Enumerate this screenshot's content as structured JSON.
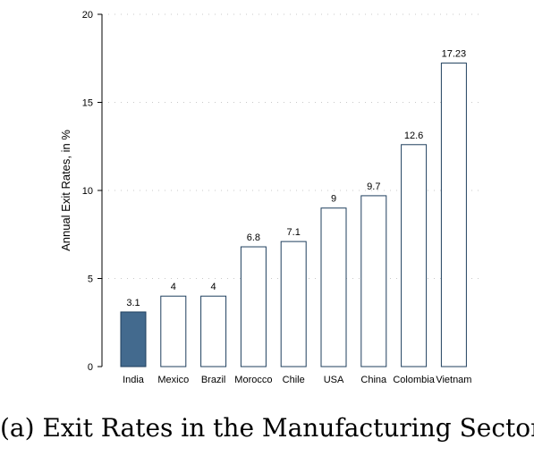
{
  "caption": "(a) Exit Rates in the Manufacturing Sector",
  "chart_data": {
    "type": "bar",
    "title": "",
    "xlabel": "",
    "ylabel": "Annual Exit Rates, in %",
    "ylim": [
      0,
      20
    ],
    "yticks": [
      0,
      5,
      10,
      15,
      20
    ],
    "grid": "horizontal dotted",
    "categories": [
      "India",
      "Mexico",
      "Brazil",
      "Morocco",
      "Chile",
      "USA",
      "China",
      "Colombia",
      "Vietnam"
    ],
    "values": [
      3.1,
      4,
      4,
      6.8,
      7.1,
      9,
      9.7,
      12.6,
      17.23
    ],
    "value_labels": [
      "3.1",
      "4",
      "4",
      "6.8",
      "7.1",
      "9",
      "9.7",
      "12.6",
      "17.23"
    ],
    "highlighted_category": "India",
    "colors": {
      "highlight_fill": "#436a8e",
      "bar_fill": "#ffffff",
      "bar_stroke": "#1f3f5e",
      "axis": "#000000",
      "grid": "#c8c8c8"
    }
  }
}
